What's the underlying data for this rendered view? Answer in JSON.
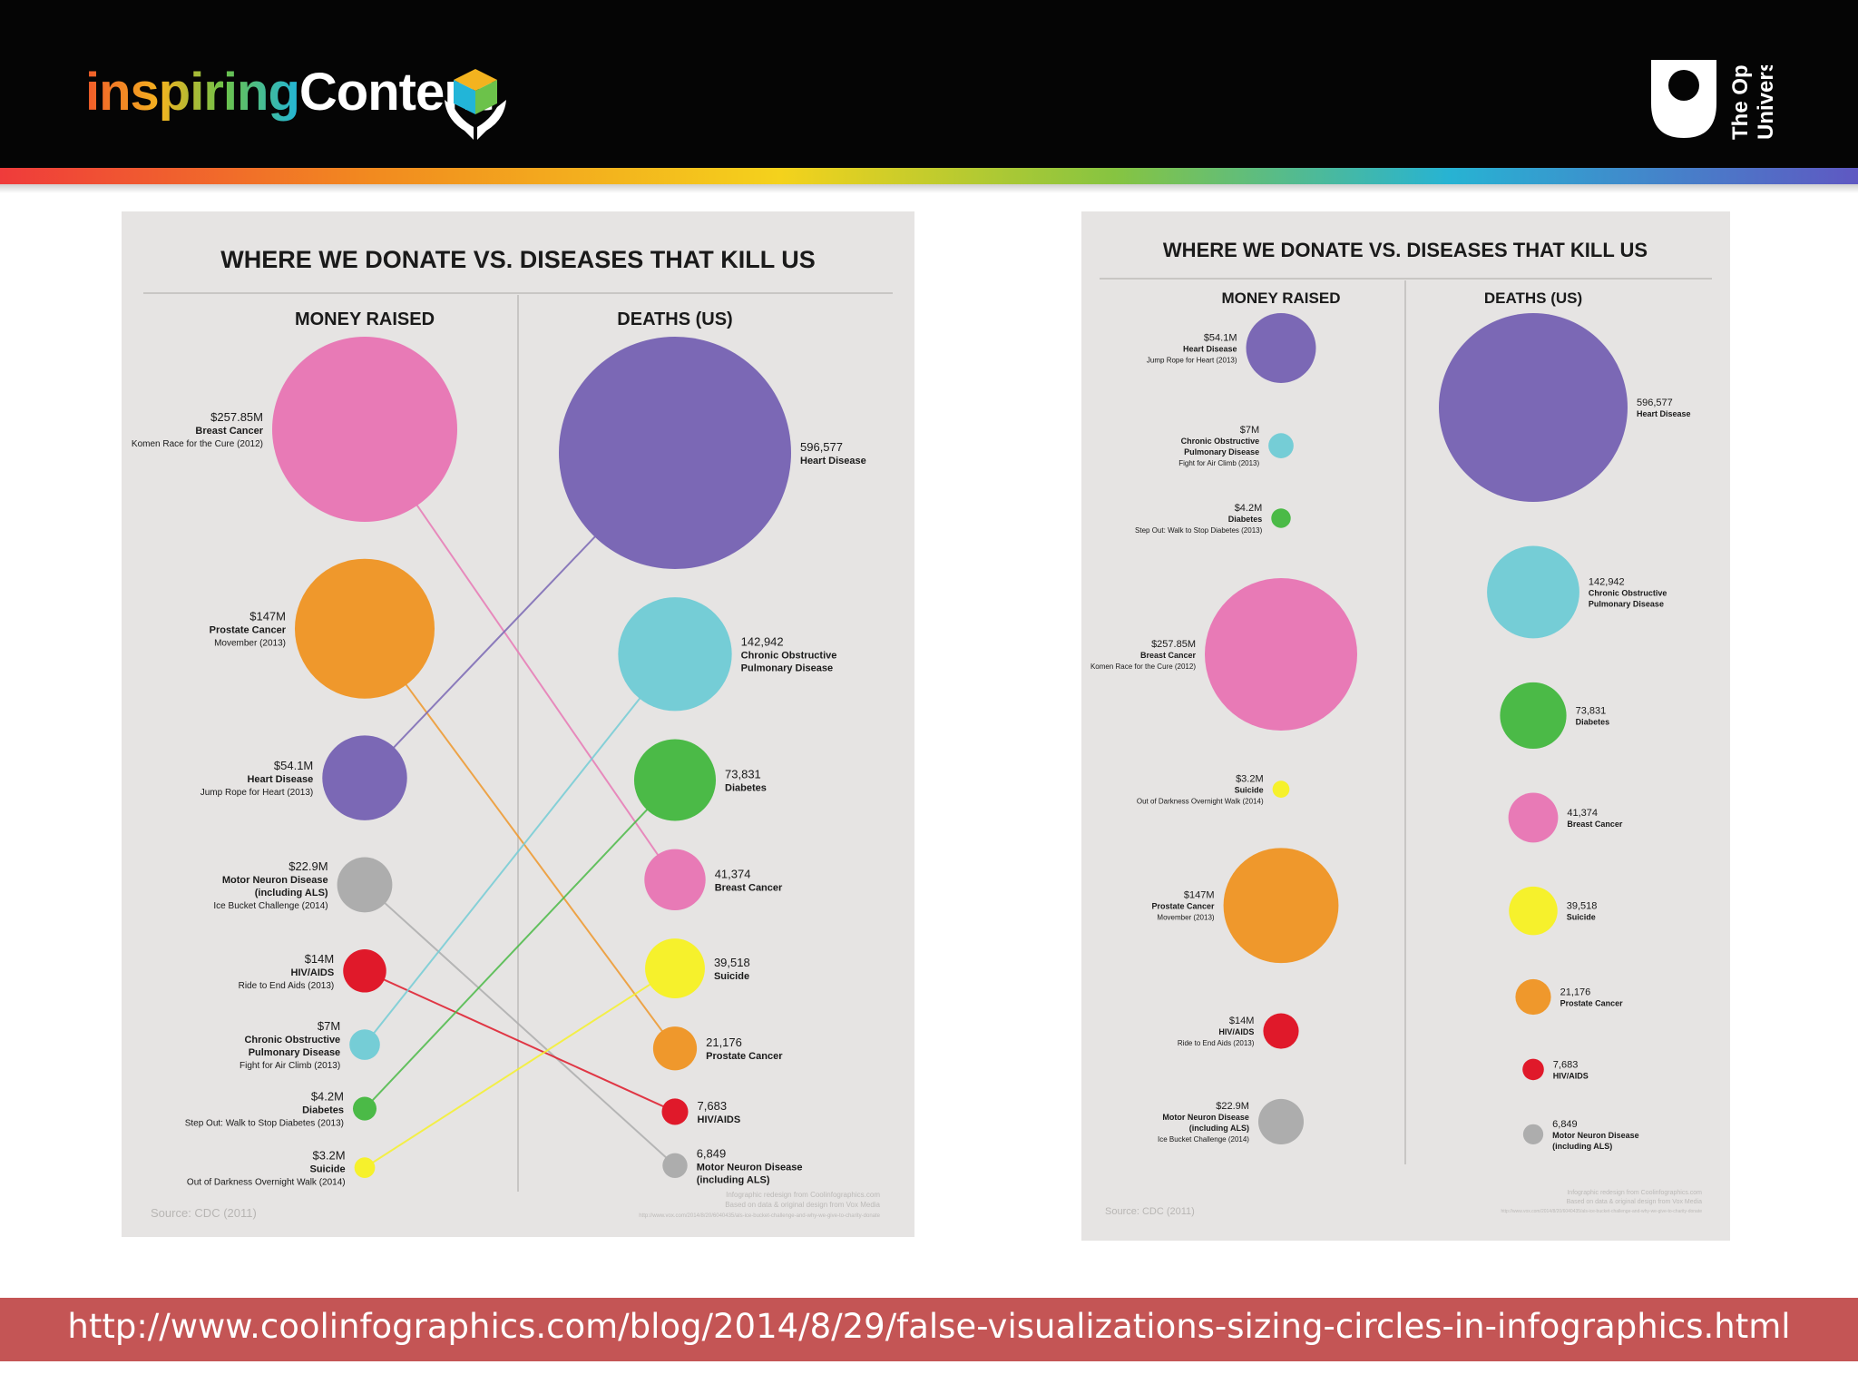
{
  "header": {
    "brand_part1": "inspiring",
    "brand_part2": "Content",
    "ou_line1": "The Open",
    "ou_line2": "University"
  },
  "footer": {
    "url": "http://www.coolinfographics.com/blog/2014/8/29/false-visualizations-sizing-circles-in-infographics.html"
  },
  "colors": {
    "heart": "#7b68b5",
    "breast": "#e87ab6",
    "prostate": "#ef982c",
    "mnd": "#adadad",
    "hiv": "#e0192a",
    "copd": "#75cdd6",
    "diabetes": "#4bba47",
    "suicide": "#f6f12c",
    "panel": "#e6e4e3",
    "footer": "#c45555"
  },
  "chart_data": [
    {
      "type": "bubble",
      "title": "WHERE WE DONATE VS. DISEASES THAT KILL US",
      "left_header": "MONEY RAISED",
      "right_header": "DEATHS (US)",
      "source": "Source: CDC (2011)",
      "credit": [
        "Infographic redesign from Coolinfographics.com",
        "Based on data & original design from Vox Media",
        "http://www.vox.com/2014/8/20/6040435/als-ice-bucket-challenge-and-why-we-give-to-charity-donate"
      ],
      "money": [
        {
          "key": "breast",
          "amount": "$257.85M",
          "value": 257.85,
          "name": "Breast Cancer",
          "name2": "",
          "event": "Komen Race for the Cure (2012)",
          "color": "#e87ab6"
        },
        {
          "key": "prostate",
          "amount": "$147M",
          "value": 147,
          "name": "Prostate Cancer",
          "name2": "",
          "event": "Movember (2013)",
          "color": "#ef982c"
        },
        {
          "key": "heart",
          "amount": "$54.1M",
          "value": 54.1,
          "name": "Heart Disease",
          "name2": "",
          "event": "Jump Rope for Heart (2013)",
          "color": "#7b68b5"
        },
        {
          "key": "mnd",
          "amount": "$22.9M",
          "value": 22.9,
          "name": "Motor Neuron Disease",
          "name2": "(including ALS)",
          "event": "Ice Bucket Challenge (2014)",
          "color": "#adadad"
        },
        {
          "key": "hiv",
          "amount": "$14M",
          "value": 14,
          "name": "HIV/AIDS",
          "name2": "",
          "event": "Ride to End Aids (2013)",
          "color": "#e0192a"
        },
        {
          "key": "copd",
          "amount": "$7M",
          "value": 7,
          "name": "Chronic Obstructive",
          "name2": "Pulmonary Disease",
          "event": "Fight for Air Climb (2013)",
          "color": "#75cdd6"
        },
        {
          "key": "diabetes",
          "amount": "$4.2M",
          "value": 4.2,
          "name": "Diabetes",
          "name2": "",
          "event": "Step Out: Walk to Stop Diabetes (2013)",
          "color": "#4bba47"
        },
        {
          "key": "suicide",
          "amount": "$3.2M",
          "value": 3.2,
          "name": "Suicide",
          "name2": "",
          "event": "Out of Darkness Overnight Walk (2014)",
          "color": "#f6f12c"
        }
      ],
      "deaths": [
        {
          "key": "heart",
          "count": "596,577",
          "value": 596577,
          "name": "Heart Disease",
          "name2": "",
          "color": "#7b68b5"
        },
        {
          "key": "copd",
          "count": "142,942",
          "value": 142942,
          "name": "Chronic Obstructive",
          "name2": "Pulmonary Disease",
          "color": "#75cdd6"
        },
        {
          "key": "diabetes",
          "count": "73,831",
          "value": 73831,
          "name": "Diabetes",
          "name2": "",
          "color": "#4bba47"
        },
        {
          "key": "breast",
          "count": "41,374",
          "value": 41374,
          "name": "Breast Cancer",
          "name2": "",
          "color": "#e87ab6"
        },
        {
          "key": "suicide",
          "count": "39,518",
          "value": 39518,
          "name": "Suicide",
          "name2": "",
          "color": "#f6f12c"
        },
        {
          "key": "prostate",
          "count": "21,176",
          "value": 21176,
          "name": "Prostate Cancer",
          "name2": "",
          "color": "#ef982c"
        },
        {
          "key": "hiv",
          "count": "7,683",
          "value": 7683,
          "name": "HIV/AIDS",
          "name2": "",
          "color": "#e0192a"
        },
        {
          "key": "mnd",
          "count": "6,849",
          "value": 6849,
          "name": "Motor Neuron Disease",
          "name2": "(including ALS)",
          "color": "#adadad"
        }
      ],
      "connectors": true
    },
    {
      "type": "bubble",
      "title": "WHERE WE DONATE VS. DISEASES THAT KILL US",
      "left_header": "MONEY RAISED",
      "right_header": "DEATHS (US)",
      "source": "Source: CDC (2011)",
      "credit": [
        "Infographic redesign from Coolinfographics.com",
        "Based on data & original design from Vox Media",
        "http://www.vox.com/2014/8/20/6040435/als-ice-bucket-challenge-and-why-we-give-to-charity-donate"
      ],
      "money": [
        {
          "key": "heart",
          "amount": "$54.1M",
          "value": 54.1,
          "name": "Heart Disease",
          "name2": "",
          "event": "Jump Rope for Heart (2013)",
          "color": "#7b68b5"
        },
        {
          "key": "copd",
          "amount": "$7M",
          "value": 7,
          "name": "Chronic Obstructive",
          "name2": "Pulmonary Disease",
          "event": "Fight for Air Climb (2013)",
          "color": "#75cdd6"
        },
        {
          "key": "diabetes",
          "amount": "$4.2M",
          "value": 4.2,
          "name": "Diabetes",
          "name2": "",
          "event": "Step Out: Walk to Stop Diabetes (2013)",
          "color": "#4bba47"
        },
        {
          "key": "breast",
          "amount": "$257.85M",
          "value": 257.85,
          "name": "Breast Cancer",
          "name2": "",
          "event": "Komen Race for the Cure (2012)",
          "color": "#e87ab6"
        },
        {
          "key": "suicide",
          "amount": "$3.2M",
          "value": 3.2,
          "name": "Suicide",
          "name2": "",
          "event": "Out of Darkness Overnight Walk (2014)",
          "color": "#f6f12c"
        },
        {
          "key": "prostate",
          "amount": "$147M",
          "value": 147,
          "name": "Prostate Cancer",
          "name2": "",
          "event": "Movember (2013)",
          "color": "#ef982c"
        },
        {
          "key": "hiv",
          "amount": "$14M",
          "value": 14,
          "name": "HIV/AIDS",
          "name2": "",
          "event": "Ride to End Aids (2013)",
          "color": "#e0192a"
        },
        {
          "key": "mnd",
          "amount": "$22.9M",
          "value": 22.9,
          "name": "Motor Neuron Disease",
          "name2": "(including ALS)",
          "event": "Ice Bucket Challenge (2014)",
          "color": "#adadad"
        }
      ],
      "deaths": [
        {
          "key": "heart",
          "count": "596,577",
          "value": 596577,
          "name": "Heart Disease",
          "name2": "",
          "color": "#7b68b5"
        },
        {
          "key": "copd",
          "count": "142,942",
          "value": 142942,
          "name": "Chronic Obstructive",
          "name2": "Pulmonary Disease",
          "color": "#75cdd6"
        },
        {
          "key": "diabetes",
          "count": "73,831",
          "value": 73831,
          "name": "Diabetes",
          "name2": "",
          "color": "#4bba47"
        },
        {
          "key": "breast",
          "count": "41,374",
          "value": 41374,
          "name": "Breast Cancer",
          "name2": "",
          "color": "#e87ab6"
        },
        {
          "key": "suicide",
          "count": "39,518",
          "value": 39518,
          "name": "Suicide",
          "name2": "",
          "color": "#f6f12c"
        },
        {
          "key": "prostate",
          "count": "21,176",
          "value": 21176,
          "name": "Prostate Cancer",
          "name2": "",
          "color": "#ef982c"
        },
        {
          "key": "hiv",
          "count": "7,683",
          "value": 7683,
          "name": "HIV/AIDS",
          "name2": "",
          "color": "#e0192a"
        },
        {
          "key": "mnd",
          "count": "6,849",
          "value": 6849,
          "name": "Motor Neuron Disease",
          "name2": "(including ALS)",
          "color": "#adadad"
        }
      ],
      "connectors": false
    }
  ]
}
